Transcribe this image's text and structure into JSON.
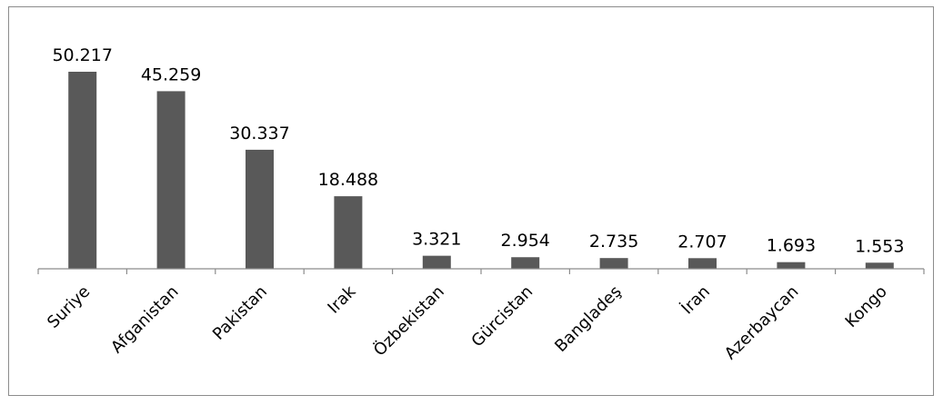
{
  "chart_data": {
    "type": "bar",
    "categories": [
      "Suriye",
      "Afganistan",
      "Pakistan",
      "Irak",
      "Özbekistan",
      "Gürcistan",
      "Bangladeş",
      "İran",
      "Azerbaycan",
      "Kongo"
    ],
    "values": [
      50217,
      45259,
      30337,
      18488,
      3321,
      2954,
      2735,
      2707,
      1693,
      1553
    ],
    "data_labels": [
      "50.217",
      "45.259",
      "30.337",
      "18.488",
      "3.321",
      "2.954",
      "2.735",
      "2.707",
      "1.693",
      "1.553"
    ],
    "title": "",
    "xlabel": "",
    "ylabel": "",
    "ylim": [
      0,
      50217
    ],
    "grid": false,
    "legend": "none",
    "bar_color": "#595959",
    "axis_color": "#8c8c8c"
  }
}
